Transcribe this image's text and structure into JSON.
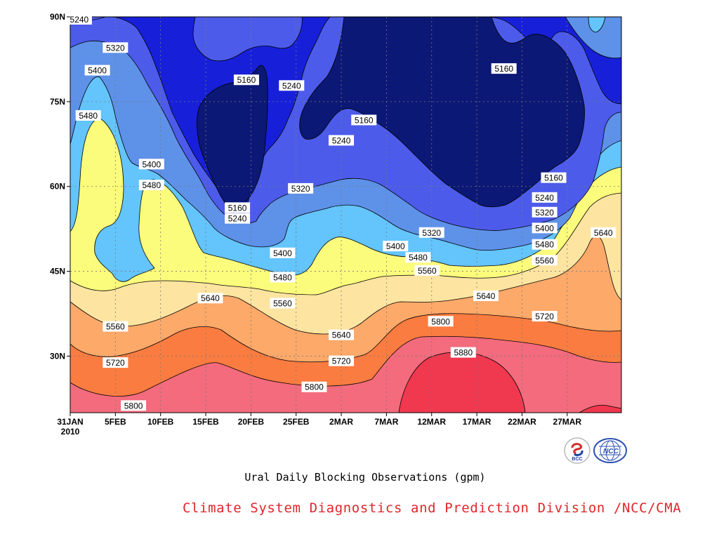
{
  "chart_data": {
    "type": "heatmap",
    "subtype": "filled-contour",
    "title": "Ural Daily Blocking Observations (gpm)",
    "source": "Climate System Diagnostics and Prediction Division /NCC/CMA",
    "x_ticks": [
      "31JAN",
      "5FEB",
      "10FEB",
      "15FEB",
      "20FEB",
      "25FEB",
      "2MAR",
      "7MAR",
      "12MAR",
      "17MAR",
      "22MAR",
      "27MAR"
    ],
    "x_year_label": "2010",
    "x_day_range": [
      0,
      61
    ],
    "x_tick_days": [
      0,
      5,
      10,
      15,
      20,
      25,
      30,
      35,
      40,
      45,
      50,
      55
    ],
    "y_ticks": [
      "30N",
      "45N",
      "60N",
      "75N",
      "90N"
    ],
    "y_tick_values": [
      30,
      45,
      60,
      75,
      90
    ],
    "ylim": [
      20,
      90
    ],
    "grid": true,
    "levels": [
      5160,
      5240,
      5320,
      5400,
      5480,
      5560,
      5640,
      5720,
      5800,
      5880
    ],
    "level_colors": {
      "lt5160": "#0b1875",
      "5160": "#1720d8",
      "5240": "#4c5bea",
      "5320": "#5e91e8",
      "5400": "#64c4fc",
      "5480": "#fbfb7c",
      "5560": "#fde4a0",
      "5640": "#fca96a",
      "5720": "#fb7c40",
      "5800": "#f36b7c",
      "5880": "#f0384e"
    },
    "contour_labels": [
      {
        "value": "5240",
        "day": 1,
        "lat": 89.5
      },
      {
        "value": "5320",
        "day": 5,
        "lat": 84.5
      },
      {
        "value": "5400",
        "day": 3,
        "lat": 80.5
      },
      {
        "value": "5480",
        "day": 2,
        "lat": 72.5
      },
      {
        "value": "5160",
        "day": 19.5,
        "lat": 78.8
      },
      {
        "value": "5240",
        "day": 24.5,
        "lat": 77.8
      },
      {
        "value": "5160",
        "day": 32.5,
        "lat": 71.7
      },
      {
        "value": "5160",
        "day": 48,
        "lat": 80.8
      },
      {
        "value": "5240",
        "day": 30,
        "lat": 68.1
      },
      {
        "value": "5400",
        "day": 9,
        "lat": 63.9
      },
      {
        "value": "5480",
        "day": 9,
        "lat": 60.2
      },
      {
        "value": "5320",
        "day": 25.5,
        "lat": 59.6
      },
      {
        "value": "5160",
        "day": 18.5,
        "lat": 56.2
      },
      {
        "value": "5240",
        "day": 18.5,
        "lat": 54.3
      },
      {
        "value": "5160",
        "day": 53.5,
        "lat": 61.5
      },
      {
        "value": "5240",
        "day": 52.5,
        "lat": 58.0
      },
      {
        "value": "5320",
        "day": 52.5,
        "lat": 55.4
      },
      {
        "value": "5400",
        "day": 52.5,
        "lat": 52.6
      },
      {
        "value": "5480",
        "day": 52.5,
        "lat": 49.7
      },
      {
        "value": "5560",
        "day": 52.5,
        "lat": 46.9
      },
      {
        "value": "5320",
        "day": 40,
        "lat": 51.8
      },
      {
        "value": "5400",
        "day": 36,
        "lat": 49.4
      },
      {
        "value": "5480",
        "day": 38.5,
        "lat": 47.4
      },
      {
        "value": "5560",
        "day": 39.5,
        "lat": 45.1
      },
      {
        "value": "5400",
        "day": 23.5,
        "lat": 48.2
      },
      {
        "value": "5480",
        "day": 23.5,
        "lat": 43.9
      },
      {
        "value": "5560",
        "day": 23.5,
        "lat": 39.3
      },
      {
        "value": "5640",
        "day": 15.5,
        "lat": 40.2
      },
      {
        "value": "5640",
        "day": 46,
        "lat": 40.6
      },
      {
        "value": "5640",
        "day": 59,
        "lat": 51.8
      },
      {
        "value": "5720",
        "day": 52.5,
        "lat": 37.0
      },
      {
        "value": "5800",
        "day": 41,
        "lat": 36.1
      },
      {
        "value": "5640",
        "day": 30,
        "lat": 33.7
      },
      {
        "value": "5720",
        "day": 30,
        "lat": 29.1
      },
      {
        "value": "5880",
        "day": 43.5,
        "lat": 30.6
      },
      {
        "value": "5560",
        "day": 5,
        "lat": 35.2
      },
      {
        "value": "5720",
        "day": 5,
        "lat": 28.8
      },
      {
        "value": "5800",
        "day": 27,
        "lat": 24.5
      },
      {
        "value": "5800",
        "day": 7,
        "lat": 21.2
      }
    ]
  },
  "logos": {
    "bcc_text": "BCC",
    "ncc_text": "NCC"
  }
}
